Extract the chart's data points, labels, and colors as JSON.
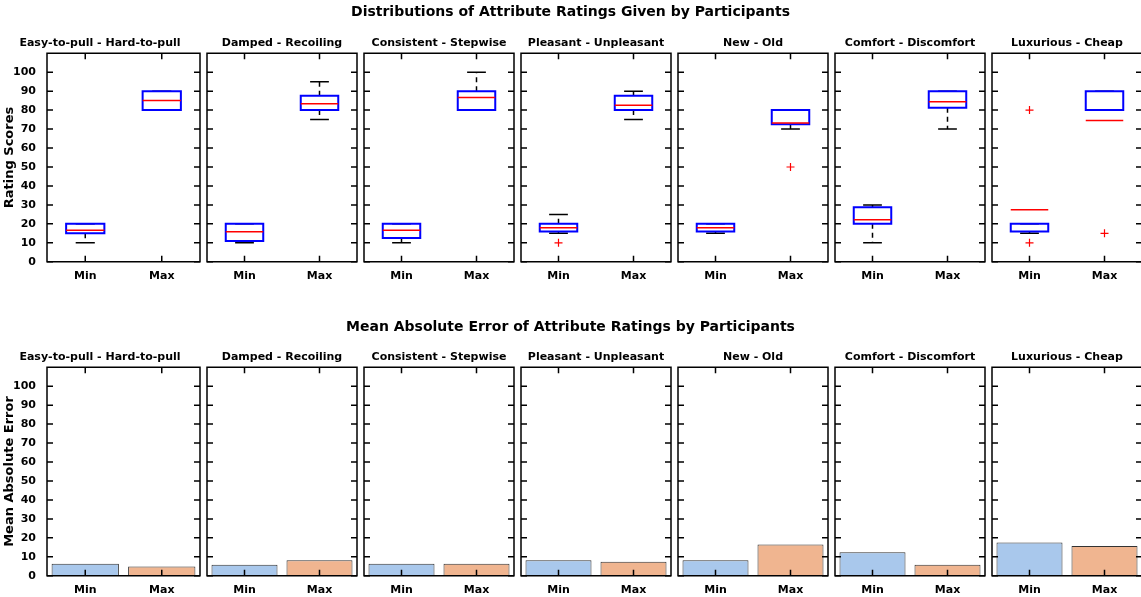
{
  "chart_data": [
    {
      "type": "other",
      "title": "Distributions of Attribute Ratings Given by Participants"
    },
    {
      "type": "box",
      "subtitle": "Easy-to-pull - Hard-to-pull",
      "ylabel": "Rating Scores",
      "categories": [
        "Min",
        "Max"
      ],
      "color": "#0000ff",
      "boxes": [
        {
          "low": 10,
          "q1": 15,
          "median": 16.7,
          "q3": 20,
          "high": 20
        },
        {
          "low": 80,
          "q1": 80,
          "median": 85,
          "q3": 90,
          "high": 90
        }
      ],
      "ylim": [
        0,
        110
      ],
      "yticks": [
        0,
        10,
        20,
        30,
        40,
        50,
        60,
        70,
        80,
        90,
        100
      ]
    },
    {
      "type": "box",
      "subtitle": "Damped - Recoiling",
      "categories": [
        "Min",
        "Max"
      ],
      "color": "#0000ff",
      "boxes": [
        {
          "low": 10,
          "q1": 11,
          "median": 15.8,
          "q3": 20,
          "high": 20
        },
        {
          "low": 75,
          "q1": 80,
          "median": 83.3,
          "q3": 87.5,
          "high": 95
        }
      ],
      "ylim": [
        0,
        110
      ],
      "yticks": [
        0,
        10,
        20,
        30,
        40,
        50,
        60,
        70,
        80,
        90,
        100
      ],
      "tick_labels": "x"
    },
    {
      "type": "box",
      "subtitle": "Consistent - Stepwise",
      "categories": [
        "Min",
        "Max"
      ],
      "color": "#0000ff",
      "boxes": [
        {
          "low": 10,
          "q1": 12.5,
          "median": 16.7,
          "q3": 20,
          "high": 20
        },
        {
          "low": 80,
          "q1": 80,
          "median": 86.7,
          "q3": 90,
          "high": 100
        }
      ],
      "ylim": [
        0,
        110
      ],
      "yticks": [
        0,
        10,
        20,
        30,
        40,
        50,
        60,
        70,
        80,
        90,
        100
      ],
      "tick_labels": "x"
    },
    {
      "type": "box",
      "subtitle": "Pleasant - Unpleasant",
      "categories": [
        "Min",
        "Max"
      ],
      "color": "#0000ff",
      "boxes": [
        {
          "low": 15,
          "q1": 16,
          "median": 18,
          "q3": 20,
          "high": 25,
          "outliers": [
            10
          ]
        },
        {
          "low": 75,
          "q1": 80,
          "median": 82.5,
          "q3": 87.5,
          "high": 90
        }
      ],
      "ylim": [
        0,
        110
      ],
      "yticks": [
        0,
        10,
        20,
        30,
        40,
        50,
        60,
        70,
        80,
        90,
        100
      ],
      "tick_labels": "x"
    },
    {
      "type": "box",
      "subtitle": "New - Old",
      "categories": [
        "Min",
        "Max"
      ],
      "color": "#0000ff",
      "boxes": [
        {
          "low": 15,
          "q1": 16,
          "median": 18,
          "q3": 20,
          "high": 20
        },
        {
          "low": 70,
          "q1": 72.5,
          "median": 73.2,
          "q3": 80,
          "high": 80,
          "outliers": [
            50
          ]
        }
      ],
      "ylim": [
        0,
        110
      ],
      "yticks": [
        0,
        10,
        20,
        30,
        40,
        50,
        60,
        70,
        80,
        90,
        100
      ],
      "tick_labels": "x"
    },
    {
      "type": "box",
      "subtitle": "Comfort - Discomfort",
      "categories": [
        "Min",
        "Max"
      ],
      "color": "#0000ff",
      "boxes": [
        {
          "low": 10,
          "q1": 20,
          "median": 22.2,
          "q3": 28.7,
          "high": 30
        },
        {
          "low": 70,
          "q1": 81.2,
          "median": 84.4,
          "q3": 90,
          "high": 90
        }
      ],
      "ylim": [
        0,
        110
      ],
      "yticks": [
        0,
        10,
        20,
        30,
        40,
        50,
        60,
        70,
        80,
        90,
        100
      ],
      "tick_labels": "x"
    },
    {
      "type": "box",
      "subtitle": "Luxurious - Cheap",
      "categories": [
        "Min",
        "Max"
      ],
      "color": "#0000ff",
      "boxes": [
        {
          "low": 15,
          "q1": 16,
          "median": 27.4,
          "q3": 20,
          "high": 20,
          "outliers": [
            80,
            10
          ]
        },
        {
          "low": 80,
          "q1": 80,
          "median": 74.5,
          "q3": 90,
          "high": 90,
          "outliers": [
            15
          ]
        }
      ],
      "ylim": [
        0,
        110
      ],
      "yticks": [
        0,
        10,
        20,
        30,
        40,
        50,
        60,
        70,
        80,
        90,
        100
      ],
      "tick_labels": "x"
    },
    {
      "type": "other",
      "title": "Mean Absolute Error of Attribute Ratings by Participants"
    },
    {
      "type": "bar",
      "subtitle": "Easy-to-pull - Hard-to-pull",
      "ylabel": "Mean Absolute Error",
      "categories": [
        "Min",
        "Max"
      ],
      "values": [
        6.4,
        4.9
      ],
      "colors": [
        "#a9c8ec",
        "#f0b590"
      ],
      "ylim": [
        0,
        110
      ],
      "yticks": [
        0,
        10,
        20,
        30,
        40,
        50,
        60,
        70,
        80,
        90,
        100
      ]
    },
    {
      "type": "bar",
      "subtitle": "Damped - Recoiling",
      "categories": [
        "Min",
        "Max"
      ],
      "values": [
        5.8,
        8.2
      ],
      "colors": [
        "#a9c8ec",
        "#f0b590"
      ],
      "ylim": [
        0,
        110
      ],
      "yticks": [
        0,
        10,
        20,
        30,
        40,
        50,
        60,
        70,
        80,
        90,
        100
      ],
      "tick_labels": "x"
    },
    {
      "type": "bar",
      "subtitle": "Consistent - Stepwise",
      "categories": [
        "Min",
        "Max"
      ],
      "values": [
        6.4,
        6.4
      ],
      "colors": [
        "#a9c8ec",
        "#f0b590"
      ],
      "ylim": [
        0,
        110
      ],
      "yticks": [
        0,
        10,
        20,
        30,
        40,
        50,
        60,
        70,
        80,
        90,
        100
      ],
      "tick_labels": "x"
    },
    {
      "type": "bar",
      "subtitle": "Pleasant - Unpleasant",
      "categories": [
        "Min",
        "Max"
      ],
      "values": [
        8.2,
        7.4
      ],
      "colors": [
        "#a9c8ec",
        "#f0b590"
      ],
      "ylim": [
        0,
        110
      ],
      "yticks": [
        0,
        10,
        20,
        30,
        40,
        50,
        60,
        70,
        80,
        90,
        100
      ],
      "tick_labels": "x"
    },
    {
      "type": "bar",
      "subtitle": "New - Old",
      "categories": [
        "Min",
        "Max"
      ],
      "values": [
        8.2,
        16.5
      ],
      "colors": [
        "#a9c8ec",
        "#f0b590"
      ],
      "ylim": [
        0,
        110
      ],
      "yticks": [
        0,
        10,
        20,
        30,
        40,
        50,
        60,
        70,
        80,
        90,
        100
      ],
      "tick_labels": "x"
    },
    {
      "type": "bar",
      "subtitle": "Comfort - Discomfort",
      "categories": [
        "Min",
        "Max"
      ],
      "values": [
        12.4,
        5.8
      ],
      "colors": [
        "#a9c8ec",
        "#f0b590"
      ],
      "ylim": [
        0,
        110
      ],
      "yticks": [
        0,
        10,
        20,
        30,
        40,
        50,
        60,
        70,
        80,
        90,
        100
      ],
      "tick_labels": "x"
    },
    {
      "type": "bar",
      "subtitle": "Luxurious - Cheap",
      "categories": [
        "Min",
        "Max"
      ],
      "values": [
        17.5,
        15.7
      ],
      "colors": [
        "#a9c8ec",
        "#f0b590"
      ],
      "ylim": [
        0,
        110
      ],
      "yticks": [
        0,
        10,
        20,
        30,
        40,
        50,
        60,
        70,
        80,
        90,
        100
      ],
      "tick_labels": "x"
    }
  ]
}
